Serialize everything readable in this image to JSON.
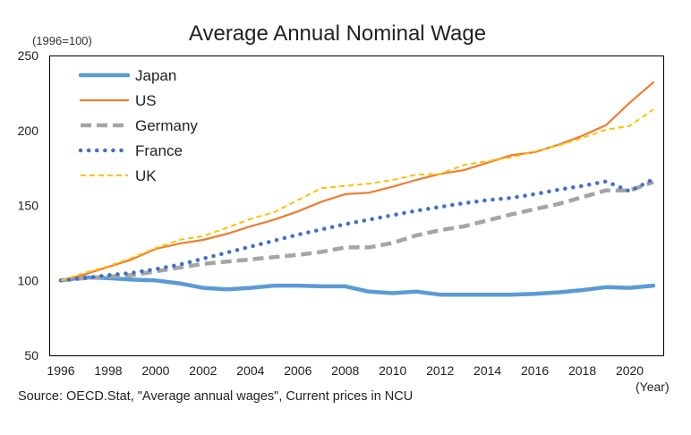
{
  "chart_data": {
    "type": "line",
    "title": "Average Annual Nominal Wage",
    "ylabel": "(1996=100)",
    "xlabel": "(Year)",
    "source": "Source: OECD.Stat, \"Average annual wages\", Current prices in NCU",
    "xlim": [
      1996,
      2021
    ],
    "ylim": [
      50,
      250
    ],
    "x_ticks": [
      1996,
      1998,
      2000,
      2002,
      2004,
      2006,
      2008,
      2010,
      2012,
      2014,
      2016,
      2018,
      2020
    ],
    "y_ticks": [
      50,
      100,
      150,
      200,
      250
    ],
    "grid": false,
    "legend_position": "top-left",
    "x": [
      1996,
      1997,
      1998,
      1999,
      2000,
      2001,
      2002,
      2003,
      2004,
      2005,
      2006,
      2007,
      2008,
      2009,
      2010,
      2011,
      2012,
      2013,
      2014,
      2015,
      2016,
      2017,
      2018,
      2019,
      2020,
      2021
    ],
    "series": [
      {
        "name": "Japan",
        "color": "#5b9bd5",
        "style": "solid-thick",
        "values": [
          100,
          102,
          101.5,
          100.5,
          100,
          98,
          95,
          94,
          95,
          96.5,
          96.5,
          96,
          96,
          92.5,
          91.5,
          92.5,
          90.5,
          90.5,
          90.5,
          90.5,
          91,
          92,
          93.5,
          95.5,
          95,
          96.5
        ]
      },
      {
        "name": "US",
        "color": "#ed7d31",
        "style": "solid",
        "values": [
          100,
          104,
          109,
          114,
          121,
          124.5,
          127,
          131,
          136,
          140.5,
          146,
          152.5,
          157.5,
          158.5,
          162.5,
          167,
          171,
          173.5,
          178.5,
          183.5,
          185.5,
          190.5,
          196.5,
          203.5,
          218.5,
          232
        ]
      },
      {
        "name": "Germany",
        "color": "#a5a5a5",
        "style": "dashed-thick",
        "values": [
          100,
          101.5,
          102.5,
          103.5,
          106,
          108.5,
          111,
          112.5,
          114,
          115.5,
          117,
          119,
          122,
          122,
          125,
          130,
          133.5,
          136,
          140,
          144,
          147.5,
          151,
          155.5,
          160,
          160,
          165.5
        ]
      },
      {
        "name": "France",
        "color": "#4472c4",
        "style": "dotted",
        "values": [
          100,
          101.5,
          103.5,
          105,
          107.5,
          110.5,
          114.5,
          118.5,
          122.5,
          126.5,
          130.5,
          134,
          137.5,
          140.5,
          143.5,
          146.5,
          149,
          151.5,
          153.5,
          155,
          157.5,
          160.5,
          163,
          166,
          159.5,
          167.5
        ]
      },
      {
        "name": "UK",
        "color": "#ffc000",
        "style": "dashed",
        "values": [
          100,
          105,
          109.5,
          115,
          121.5,
          127,
          129.5,
          135,
          141,
          145.5,
          153.5,
          161.5,
          163,
          164.5,
          167,
          170.5,
          171,
          177,
          179.5,
          182,
          186,
          190,
          195,
          200.5,
          203,
          214
        ]
      }
    ]
  }
}
